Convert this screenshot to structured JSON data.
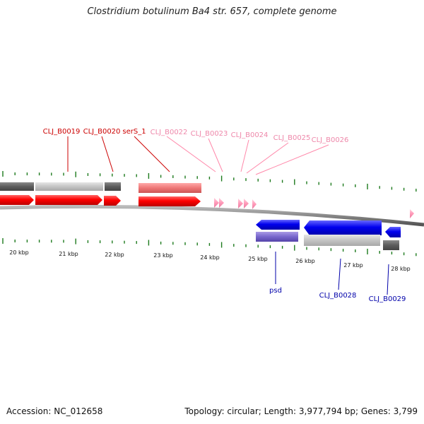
{
  "title": "Clostridium botulinum Ba4 str. 657, complete genome",
  "footer": {
    "accession": "Accession: NC_012658",
    "summary": "Topology: circular; Length: 3,977,794 bp; Genes: 3,799"
  },
  "colors": {
    "tick": "#1d7a1d",
    "cds_forward": "#ff0000",
    "cds_forward_light": "#ff9ab5",
    "cds_reverse": "#0000ee",
    "gene_dark": "#5f5f5f",
    "gene_light": "#c6c6c6",
    "gene_salmon": "#ee7777",
    "gene_purple": "#7766cc",
    "backbone": "#888888"
  },
  "scale_labels": [
    "20 kbp",
    "21 kbp",
    "22 kbp",
    "23 kbp",
    "24 kbp",
    "25 kbp",
    "26 kbp",
    "27 kbp",
    "28 kbp"
  ],
  "forward_labels": [
    {
      "id": "clj0019",
      "text": "CLJ_B0019",
      "color": "red"
    },
    {
      "id": "clj0020",
      "text": "CLJ_B0020",
      "color": "red"
    },
    {
      "id": "sers1",
      "text": "serS_1",
      "color": "red"
    },
    {
      "id": "clj0022",
      "text": "CLJ_B0022",
      "color": "pink"
    },
    {
      "id": "clj0023",
      "text": "CLJ_B0023",
      "color": "pink"
    },
    {
      "id": "clj0024",
      "text": "CLJ_B0024",
      "color": "pink"
    },
    {
      "id": "clj0025",
      "text": "CLJ_B0025",
      "color": "pink"
    },
    {
      "id": "clj0026",
      "text": "CLJ_B0026",
      "color": "pink"
    }
  ],
  "reverse_labels": [
    {
      "id": "psd",
      "text": "psd"
    },
    {
      "id": "clj0028",
      "text": "CLJ_B0028"
    },
    {
      "id": "clj0029",
      "text": "CLJ_B0029"
    }
  ]
}
